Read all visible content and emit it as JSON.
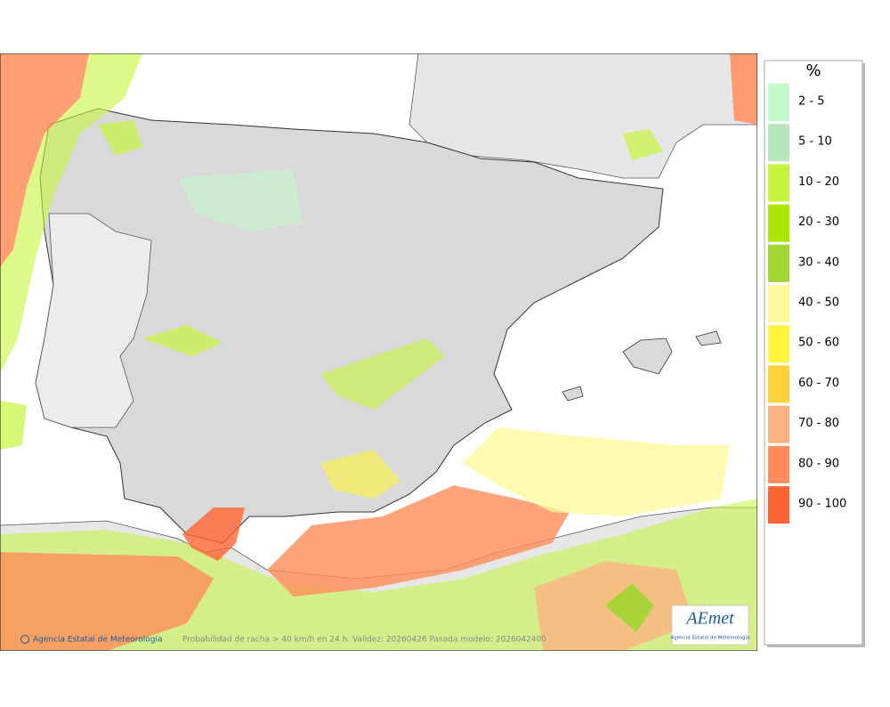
{
  "legend": {
    "title": "%",
    "items": [
      {
        "label": "2 - 5",
        "color": "#c3f9c8"
      },
      {
        "label": "5 - 10",
        "color": "#b4e8b8"
      },
      {
        "label": "10 - 20",
        "color": "#c4f53c"
      },
      {
        "label": "20 - 30",
        "color": "#aae600"
      },
      {
        "label": "30 - 40",
        "color": "#a0d632"
      },
      {
        "label": "40 - 50",
        "color": "#fff99b"
      },
      {
        "label": "50 - 60",
        "color": "#fff53c"
      },
      {
        "label": "60 - 70",
        "color": "#ffd23c"
      },
      {
        "label": "70 - 80",
        "color": "#ffb080"
      },
      {
        "label": "80 - 90",
        "color": "#ff8c5a"
      },
      {
        "label": "90 - 100",
        "color": "#ff6432"
      }
    ]
  },
  "footer": {
    "credit": "Agencia Estatal de Meteorología",
    "caption": "Probabilidad de racha > 40 km/h en 24 h. Validez: 20260426 Pasada modelo: 2026042400"
  },
  "logo": {
    "text": "AEmet",
    "subtitle": "Agencia Estatal de Meteorología"
  }
}
